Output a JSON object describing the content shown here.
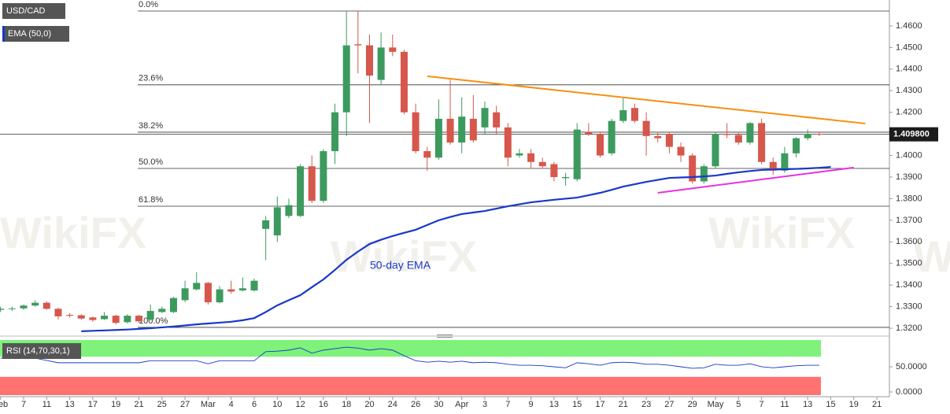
{
  "chart_data": [
    {
      "type": "candlestick",
      "title": "USD/CAD",
      "watermark": "WikiFX",
      "categories": [
        "Feb",
        null,
        "7",
        null,
        "11",
        null,
        "13",
        null,
        "17",
        null,
        "19",
        null,
        "21",
        null,
        "25",
        null,
        "27",
        null,
        "Mar",
        null,
        "4",
        null,
        "6",
        null,
        "10",
        null,
        "12",
        null,
        "16",
        null,
        "18",
        null,
        "20",
        null,
        "24",
        null,
        "26",
        null,
        "30",
        null,
        "Apr",
        null,
        "3",
        null,
        "7",
        null,
        "9",
        null,
        "13",
        null,
        "15",
        null,
        "17",
        null,
        "21",
        null,
        "23",
        null,
        "27",
        null,
        "29",
        null,
        "May",
        null,
        "5",
        null,
        "7",
        null,
        "11",
        null,
        "13",
        null,
        "15",
        null,
        "19",
        null,
        "21"
      ],
      "open": [
        1.3285,
        1.329,
        1.3292,
        1.3305,
        1.3318,
        1.329,
        1.3262,
        1.326,
        1.325,
        1.3242,
        1.3258,
        1.3228,
        1.3258,
        1.324,
        1.3275,
        1.3275,
        1.333,
        1.338,
        1.341,
        1.332,
        1.338,
        1.3375,
        1.3375,
        1.366,
        1.363,
        1.372,
        1.372,
        1.395,
        1.379,
        1.402,
        1.42,
        1.4515,
        1.451,
        1.435,
        1.45,
        1.448,
        1.42,
        1.402,
        1.399,
        1.417,
        1.406,
        1.417,
        1.413,
        1.42,
        1.413,
        1.4,
        1.401,
        1.397,
        1.396,
        1.3895,
        1.389,
        1.411,
        1.41,
        1.401,
        1.416,
        1.422,
        1.416,
        1.409,
        1.41,
        1.404,
        1.4,
        1.388,
        1.395,
        1.41,
        1.4095,
        1.406,
        1.415,
        1.397,
        1.393,
        1.401,
        1.408,
        1.41,
        null,
        null,
        null,
        null,
        null
      ],
      "high": [
        1.33,
        1.33,
        1.331,
        1.333,
        1.3325,
        1.3295,
        1.327,
        1.3265,
        1.3255,
        1.3275,
        1.3262,
        1.3265,
        1.3262,
        1.331,
        1.33,
        1.3345,
        1.342,
        1.346,
        1.3415,
        1.3395,
        1.342,
        1.3435,
        1.343,
        1.372,
        1.381,
        1.38,
        1.396,
        1.4,
        1.403,
        1.424,
        1.467,
        1.467,
        1.456,
        1.457,
        1.456,
        1.449,
        1.424,
        1.404,
        1.426,
        1.435,
        1.427,
        1.428,
        1.425,
        1.423,
        1.415,
        1.403,
        1.403,
        1.399,
        1.397,
        1.392,
        1.415,
        1.415,
        1.411,
        1.417,
        1.427,
        1.424,
        1.42,
        1.411,
        1.411,
        1.406,
        1.401,
        1.396,
        1.411,
        1.415,
        1.411,
        1.4155,
        1.417,
        1.399,
        1.404,
        1.4085,
        1.412,
        1.411,
        null,
        null,
        null,
        null,
        null
      ],
      "low": [
        1.3275,
        1.328,
        1.3285,
        1.33,
        1.3285,
        1.324,
        1.325,
        1.324,
        1.323,
        1.3238,
        1.3218,
        1.3222,
        1.3225,
        1.3235,
        1.327,
        1.327,
        1.332,
        1.3375,
        1.331,
        1.3315,
        1.336,
        1.337,
        1.337,
        1.3515,
        1.36,
        1.371,
        1.3715,
        1.378,
        1.378,
        1.396,
        1.409,
        1.438,
        1.415,
        1.433,
        1.446,
        1.419,
        1.401,
        1.393,
        1.398,
        1.405,
        1.401,
        1.406,
        1.41,
        1.41,
        1.395,
        1.399,
        1.394,
        1.394,
        1.388,
        1.386,
        1.388,
        1.409,
        1.399,
        1.4,
        1.415,
        1.415,
        1.4,
        1.406,
        1.401,
        1.397,
        1.387,
        1.387,
        1.394,
        1.408,
        1.405,
        1.405,
        1.396,
        1.391,
        1.392,
        1.399,
        1.407,
        1.409,
        null,
        null,
        null,
        null,
        null
      ],
      "close": [
        1.329,
        1.3292,
        1.3305,
        1.3318,
        1.329,
        1.3255,
        1.3258,
        1.3245,
        1.3238,
        1.3258,
        1.3225,
        1.3258,
        1.3232,
        1.328,
        1.329,
        1.334,
        1.3385,
        1.341,
        1.332,
        1.338,
        1.337,
        1.3385,
        1.342,
        1.37,
        1.376,
        1.377,
        1.395,
        1.379,
        1.402,
        1.42,
        1.451,
        1.451,
        1.437,
        1.45,
        1.448,
        1.42,
        1.402,
        1.399,
        1.417,
        1.406,
        1.418,
        1.407,
        1.422,
        1.413,
        1.399,
        1.401,
        1.397,
        1.395,
        1.39,
        1.39,
        1.412,
        1.41,
        1.4,
        1.416,
        1.421,
        1.416,
        1.409,
        1.408,
        1.404,
        1.4,
        1.388,
        1.395,
        1.41,
        1.4095,
        1.406,
        1.415,
        1.397,
        1.393,
        1.401,
        1.408,
        1.41,
        1.4098,
        null,
        null,
        null,
        null,
        null
      ],
      "up_color": "#3d9a5e",
      "down_color": "#d6574b",
      "series": [
        {
          "name": "EMA (50,0)",
          "color": "#1838c8",
          "values": [
            null,
            null,
            null,
            null,
            null,
            null,
            null,
            1.3186,
            1.3188,
            1.319,
            1.3192,
            1.3194,
            1.3197,
            1.32,
            1.3204,
            1.3208,
            1.3213,
            1.3218,
            1.3222,
            1.3226,
            1.323,
            1.3237,
            1.3247,
            1.3275,
            1.3306,
            1.333,
            1.3353,
            1.339,
            1.3426,
            1.347,
            1.3517,
            1.3555,
            1.359,
            1.361,
            1.3627,
            1.3642,
            1.3656,
            1.3678,
            1.37,
            1.3715,
            1.3729,
            1.3736,
            1.3743,
            1.3754,
            1.3765,
            1.3774,
            1.3783,
            1.3789,
            1.3795,
            1.38,
            1.3805,
            1.3816,
            1.3827,
            1.3841,
            1.3856,
            1.3867,
            1.3878,
            1.3887,
            1.3896,
            1.3898,
            1.39,
            1.3903,
            1.3907,
            1.3915,
            1.3922,
            1.3928,
            1.3933,
            1.3935,
            1.3936,
            1.3938,
            1.394,
            1.3943,
            1.3947,
            null,
            null,
            null,
            null
          ]
        }
      ],
      "annotation": "50-day EMA",
      "fib_levels": [
        {
          "label": "0.0%",
          "value": 1.4669
        },
        {
          "label": "23.6%",
          "value": 1.4327
        },
        {
          "label": "38.2%",
          "value": 1.4108
        },
        {
          "label": "50.0%",
          "value": 1.394
        },
        {
          "label": "61.8%",
          "value": 1.3765
        },
        {
          "label": "100.0%",
          "value": 1.3204
        }
      ],
      "trendlines": [
        {
          "color": "#f5900f",
          "x": [
            37,
            75
          ],
          "values": [
            1.4367,
            1.4148
          ]
        },
        {
          "color": "#e830e0",
          "x": [
            57,
            74
          ],
          "values": [
            1.3827,
            1.3944
          ]
        }
      ],
      "last_price": {
        "value": 1.4098,
        "label": "1.409800"
      },
      "ylim": [
        1.3171,
        1.472
      ],
      "yticks": [
        {
          "value": 1.32,
          "label": "1.3200"
        },
        {
          "value": 1.33,
          "label": "1.3300"
        },
        {
          "value": 1.34,
          "label": "1.3400"
        },
        {
          "value": 1.35,
          "label": "1.3500"
        },
        {
          "value": 1.36,
          "label": "1.3600"
        },
        {
          "value": 1.37,
          "label": "1.3700"
        },
        {
          "value": 1.38,
          "label": "1.3800"
        },
        {
          "value": 1.39,
          "label": "1.3900"
        },
        {
          "value": 1.4,
          "label": "1.4000"
        },
        {
          "value": 1.41,
          "label": "1.4100"
        },
        {
          "value": 1.42,
          "label": "1.4200"
        },
        {
          "value": 1.43,
          "label": "1.4300"
        },
        {
          "value": 1.44,
          "label": "1.4400"
        },
        {
          "value": 1.45,
          "label": "1.4500"
        },
        {
          "value": 1.46,
          "label": "1.4600"
        }
      ]
    },
    {
      "type": "line",
      "title": "RSI (14,70,30,1)",
      "color": "#1838c8",
      "values": [
        67,
        67,
        67,
        67,
        62.5,
        58,
        58,
        58,
        58,
        58,
        58,
        58,
        58,
        62,
        62,
        62,
        62,
        62,
        56,
        62,
        62,
        62,
        62,
        80,
        81,
        83,
        87.5,
        77,
        83,
        86,
        89,
        87,
        83,
        86,
        83,
        72,
        62,
        59,
        61,
        59,
        61,
        58,
        59,
        58,
        55,
        53,
        53,
        52,
        50,
        48,
        58,
        56,
        53,
        58,
        59,
        58,
        55,
        55,
        53,
        50,
        47,
        48,
        55,
        53,
        53,
        56,
        50,
        48,
        50,
        52,
        53,
        53,
        null,
        null,
        null,
        null,
        null
      ],
      "overbought": 70,
      "oversold": 30,
      "overbought_color": "#7ef27a",
      "oversold_color": "#ff7272",
      "ylim": [
        -6.25,
        103.1
      ],
      "yticks": [
        {
          "value": 50,
          "label": "50.0000"
        },
        {
          "value": 0,
          "label": "0.0000"
        }
      ]
    }
  ]
}
